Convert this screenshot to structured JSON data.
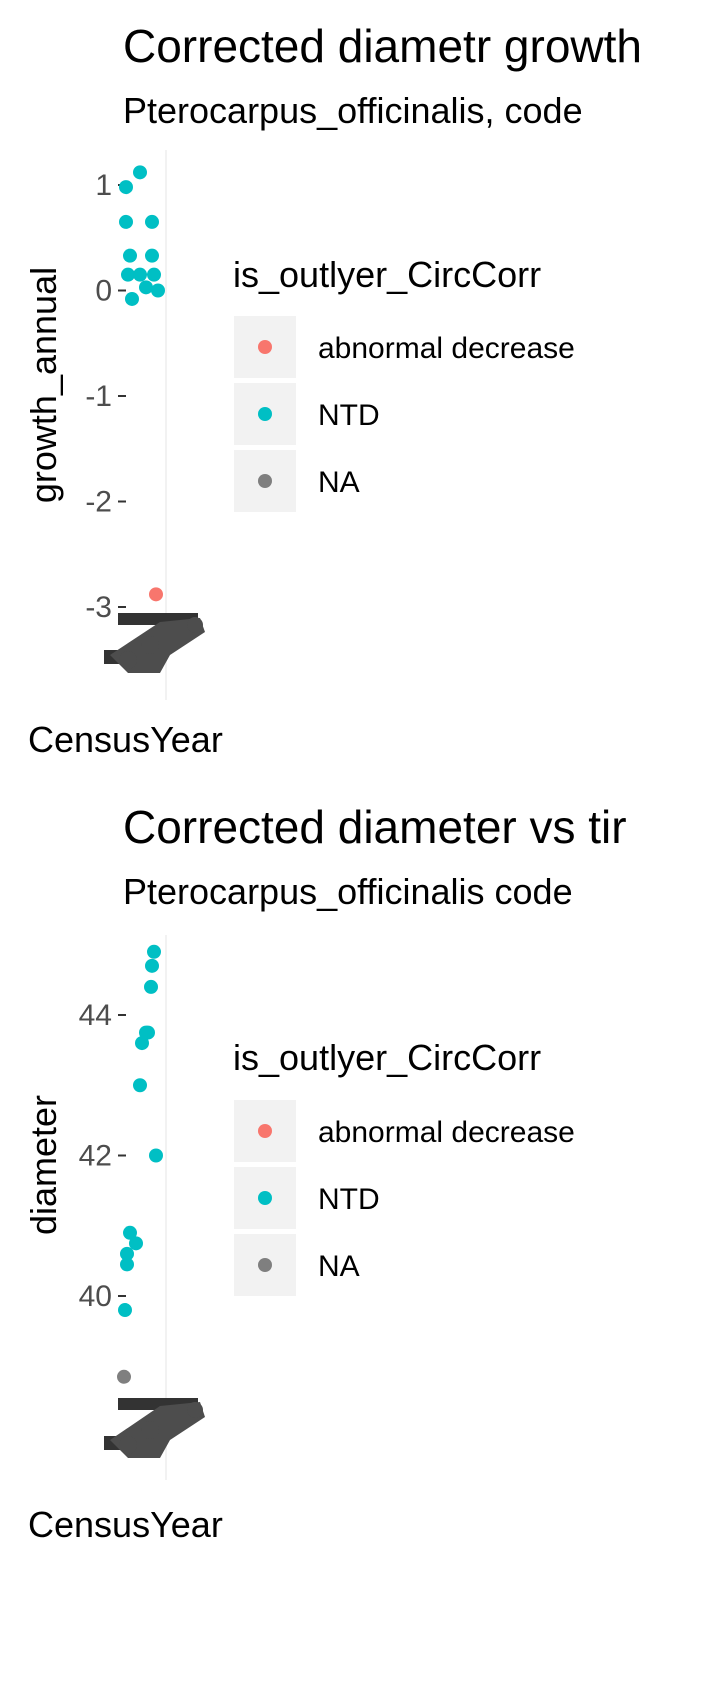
{
  "chart_data": [
    {
      "type": "scatter",
      "title": "Corrected diametr growth",
      "subtitle": "Pterocarpus_officinalis, code",
      "xlabel": "CensusYear",
      "ylabel": "growth_annual",
      "yticks": [
        1,
        0,
        -1,
        -2,
        -3
      ],
      "ytick_labels": [
        "1",
        "0",
        "-1",
        "-2",
        "-3"
      ],
      "ylim": [
        -3.5,
        1.3
      ],
      "legend": {
        "title": "is_outlyer_CircCorr",
        "placement": "right",
        "entries": [
          {
            "label": "abnormal decrease",
            "color": "#F8766D"
          },
          {
            "label": "NTD",
            "color": "#00BFC4"
          },
          {
            "label": "NA",
            "color": "#7F7F7F"
          }
        ]
      },
      "series": [
        {
          "name": "NTD",
          "color": "#00BFC4",
          "values": [
            1.12,
            0.98,
            0.65,
            0.65,
            0.33,
            0.33,
            0.15,
            0.15,
            0.15,
            0.03,
            0.0,
            -0.08
          ]
        },
        {
          "name": "abnormal decrease",
          "color": "#F8766D",
          "values": [
            -2.88
          ]
        }
      ]
    },
    {
      "type": "scatter",
      "title": "Corrected diameter vs tir",
      "subtitle": "Pterocarpus_officinalis code",
      "xlabel": "CensusYear",
      "ylabel": "diameter",
      "yticks": [
        44,
        42,
        40
      ],
      "ytick_labels": [
        "44",
        "42",
        "40"
      ],
      "ylim": [
        38.0,
        45.2
      ],
      "legend": {
        "title": "is_outlyer_CircCorr",
        "placement": "right",
        "entries": [
          {
            "label": "abnormal decrease",
            "color": "#F8766D"
          },
          {
            "label": "NTD",
            "color": "#00BFC4"
          },
          {
            "label": "NA",
            "color": "#7F7F7F"
          }
        ]
      },
      "series": [
        {
          "name": "NTD",
          "color": "#00BFC4",
          "values": [
            44.9,
            44.7,
            44.4,
            43.75,
            43.75,
            43.6,
            43.0,
            42.0,
            40.9,
            40.75,
            40.6,
            40.45,
            39.8
          ]
        },
        {
          "name": "NA",
          "color": "#7F7F7F",
          "values": [
            38.85
          ]
        }
      ]
    }
  ]
}
